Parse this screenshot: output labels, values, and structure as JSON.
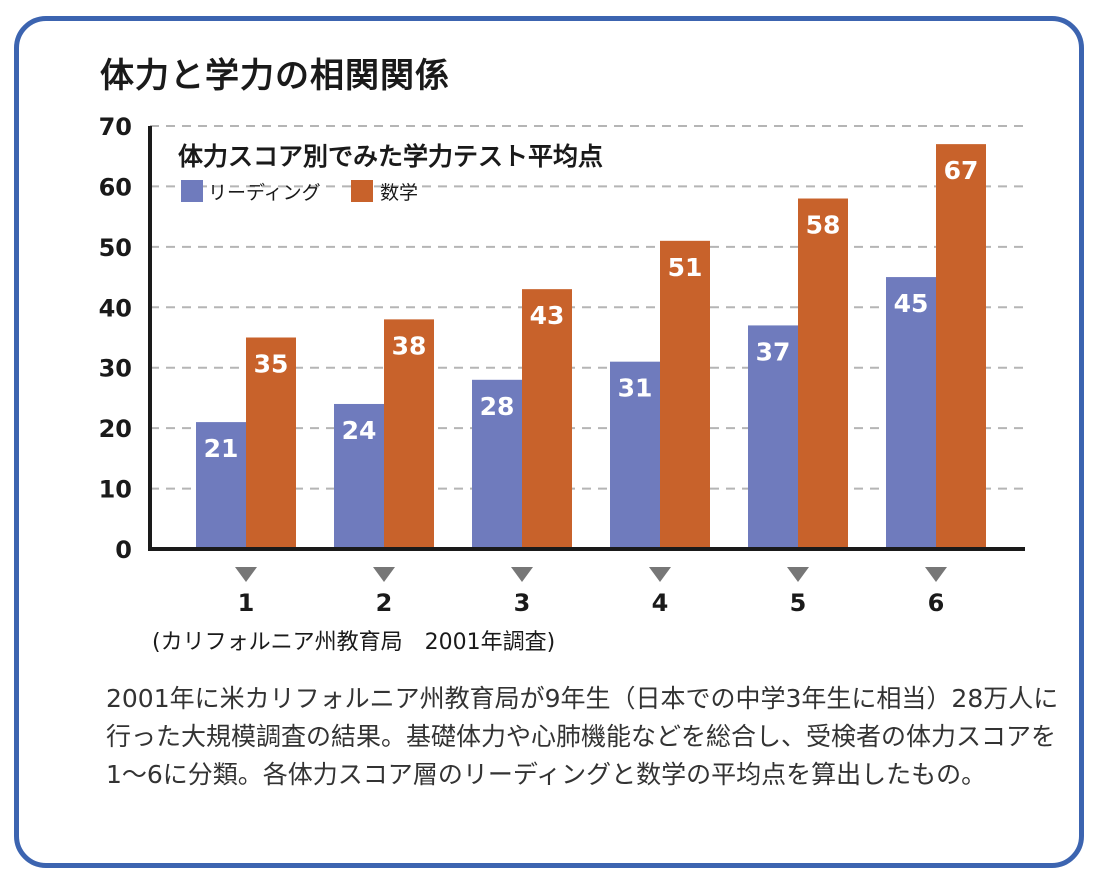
{
  "page": {
    "title": "体力と学力の相関関係",
    "source": "(カリフォルニア州教育局　2001年調査)",
    "description": "2001年に米カリフォルニア州教育局が9年生（日本での中学3年生に相当）28万人に行った大規模調査の結果。基礎体力や心肺機能などを総合し、受検者の体力スコアを1〜6に分類。各体力スコア層のリーディングと数学の平均点を算出したもの。"
  },
  "colors": {
    "reading": "#6f7bbd",
    "math": "#c8622b",
    "border": "#3c64b0"
  },
  "chart_data": {
    "type": "bar",
    "title": "体力スコア別でみた学力テスト平均点",
    "categories": [
      "1",
      "2",
      "3",
      "4",
      "5",
      "6"
    ],
    "series": [
      {
        "name": "リーディング",
        "values": [
          21,
          24,
          28,
          31,
          37,
          45
        ]
      },
      {
        "name": "数学",
        "values": [
          35,
          38,
          43,
          51,
          58,
          67
        ]
      }
    ],
    "yticks": [
      0,
      10,
      20,
      30,
      40,
      50,
      60,
      70
    ],
    "ylim": [
      0,
      70
    ],
    "grid": true,
    "legend": "top-left"
  }
}
